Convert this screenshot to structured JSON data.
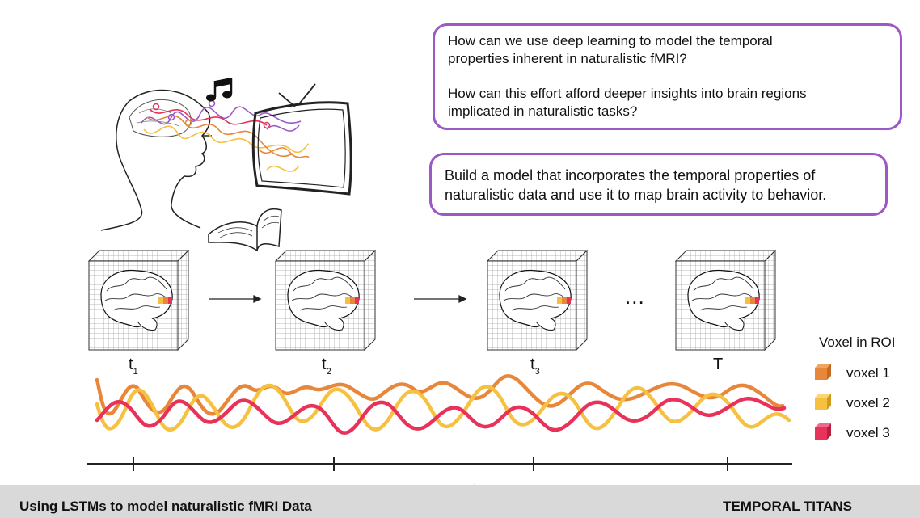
{
  "questions": {
    "q1_line1": "How can we use deep learning to model the temporal",
    "q1_line2": "properties inherent in naturalistic fMRI?",
    "q2_line1": "How can this effort afford deeper insights into brain regions",
    "q2_line2": "implicated in naturalistic tasks?"
  },
  "goal": {
    "line1": "Build a model that incorporates the temporal properties of",
    "line2": "naturalistic data and use it to map brain activity to behavior."
  },
  "timepoints": [
    {
      "label": "t",
      "sub": "1"
    },
    {
      "label": "t",
      "sub": "2"
    },
    {
      "label": "t",
      "sub": "3"
    },
    {
      "label": "T",
      "sub": ""
    }
  ],
  "ellipsis": "...",
  "legend": {
    "title": "Voxel in ROI",
    "items": [
      {
        "label": "voxel 1",
        "color": "#e8863a"
      },
      {
        "label": "voxel 2",
        "color": "#f6c040"
      },
      {
        "label": "voxel 3",
        "color": "#e8325a"
      }
    ]
  },
  "colors": {
    "accent_purple": "#9b59c6",
    "footer_bg": "#d9d9d9"
  },
  "footer": {
    "left": "Using LSTMs to model naturalistic fMRI Data",
    "right": "TEMPORAL TITANS",
    "logo_icon": "nma-logo-icon"
  }
}
